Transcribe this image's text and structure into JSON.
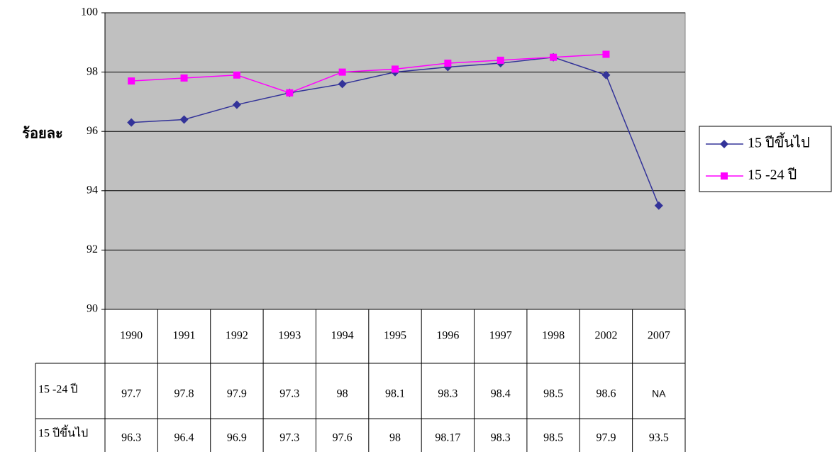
{
  "chart_data": {
    "type": "line",
    "y_label": "ร้อยละ",
    "categories": [
      "1990",
      "1991",
      "1992",
      "1993",
      "1994",
      "1995",
      "1996",
      "1997",
      "1998",
      "2002",
      "2007"
    ],
    "series": [
      {
        "name": "15 ปีขึ้นไป",
        "color": "#333399",
        "marker": "diamond",
        "values": [
          96.3,
          96.4,
          96.9,
          97.3,
          97.6,
          98,
          98.17,
          98.3,
          98.5,
          97.9,
          93.5
        ]
      },
      {
        "name": "15 -24 ปี",
        "color": "#ff00ff",
        "marker": "square",
        "values": [
          97.7,
          97.8,
          97.9,
          97.3,
          98,
          98.1,
          98.3,
          98.4,
          98.5,
          98.6,
          null
        ],
        "value_labels": [
          "97.7",
          "97.8",
          "97.9",
          "97.3",
          "98",
          "98.1",
          "98.3",
          "98.4",
          "98.5",
          "98.6",
          "NA"
        ]
      }
    ],
    "ylim": [
      90,
      100
    ],
    "yticks": [
      90,
      92,
      94,
      96,
      98,
      100
    ],
    "grid": true,
    "legend": "right",
    "plot_background": "#c0c0c0"
  }
}
